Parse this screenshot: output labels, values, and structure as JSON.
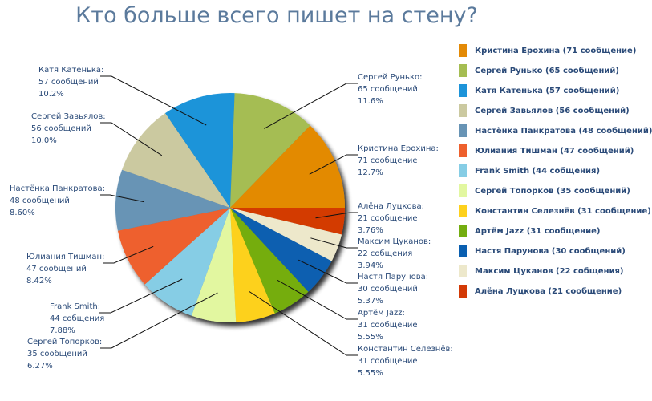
{
  "chart_data": {
    "type": "pie",
    "title": "Кто больше всего пишет на стену?",
    "legend_position": "right",
    "slices": [
      {
        "name": "Кристина Ерохина",
        "value": 71,
        "unit": "сообщение",
        "percent": "12.7%",
        "color": "#e38a06",
        "legend": "Кристина Ерохина (71 сообщение)"
      },
      {
        "name": "Сергей Рунько",
        "value": 65,
        "unit": "сообщений",
        "percent": "11.6%",
        "color": "#a5bd52",
        "legend": "Сергей Рунько (65 сообщений)"
      },
      {
        "name": "Катя Катенька",
        "value": 57,
        "unit": "сообщений",
        "percent": "10.2%",
        "color": "#1d94d9",
        "legend": "Катя Катенька (57 сообщений)"
      },
      {
        "name": "Сергей Завьялов",
        "value": 56,
        "unit": "сообщений",
        "percent": "10.0%",
        "color": "#cbc9a0",
        "legend": "Сергей Завьялов (56 сообщений)"
      },
      {
        "name": "Настёнка Панкратова",
        "value": 48,
        "unit": "сообщений",
        "percent": "8.60%",
        "color": "#6894b5",
        "legend": "Настёнка Панкратова (48 сообщений)"
      },
      {
        "name": "Юлиания Тишман",
        "value": 47,
        "unit": "сообщений",
        "percent": "8.42%",
        "color": "#ee602d",
        "legend": "Юлиания Тишман (47 сообщений)"
      },
      {
        "name": "Frank Smith",
        "value": 44,
        "unit": "собщения",
        "percent": "7.88%",
        "color": "#86cde5",
        "legend": "Frank Smith (44 собщения)"
      },
      {
        "name": "Сергей Топорков",
        "value": 35,
        "unit": "сообщений",
        "percent": "6.27%",
        "color": "#e2f7a0",
        "legend": "Сергей Топорков (35 сообщений)"
      },
      {
        "name": "Константин Селезнёв",
        "value": 31,
        "unit": "сообщение",
        "percent": "5.55%",
        "color": "#fdd11d",
        "legend": "Константин Селезнёв (31 сообщение)"
      },
      {
        "name": "Артём Jazz",
        "value": 31,
        "unit": "сообщение",
        "percent": "5.55%",
        "color": "#74ad10",
        "legend": "Артём Jazz (31 сообщение)"
      },
      {
        "name": "Настя Парунова",
        "value": 30,
        "unit": "сообщений",
        "percent": "5.37%",
        "color": "#0a5fb0",
        "legend": "Настя Парунова (30 сообщений)"
      },
      {
        "name": "Максим Цуканов",
        "value": 22,
        "unit": "собщения",
        "percent": "3.94%",
        "color": "#ede8cb",
        "legend": "Максим Цуканов (22 собщения)"
      },
      {
        "name": "Алёна Луцкова",
        "value": 21,
        "unit": "сообщение",
        "percent": "3.76%",
        "color": "#d33a06",
        "legend": "Алёна Луцкова (21 сообщение)"
      }
    ]
  },
  "labels": [
    {
      "name": "Кристина Ерохина:",
      "count": "71 сообщение",
      "pct": "12.7%"
    },
    {
      "name": "Сергей Рунько:",
      "count": "65 сообщений",
      "pct": "11.6%"
    },
    {
      "name": "Катя Катенька:",
      "count": "57 сообщений",
      "pct": "10.2%"
    },
    {
      "name": "Сергей Завьялов:",
      "count": "56 сообщений",
      "pct": "10.0%"
    },
    {
      "name": "Настёнка Панкратова:",
      "count": "48 сообщений",
      "pct": "8.60%"
    },
    {
      "name": "Юлиания Тишман:",
      "count": "47 сообщений",
      "pct": "8.42%"
    },
    {
      "name": "Frank Smith:",
      "count": "44 собщения",
      "pct": "7.88%"
    },
    {
      "name": "Сергей Топорков:",
      "count": "35 сообщений",
      "pct": "6.27%"
    },
    {
      "name": "Константин Селезнёв:",
      "count": "31 сообщение",
      "pct": "5.55%"
    },
    {
      "name": "Артём Jazz:",
      "count": "31 сообщение",
      "pct": "5.55%"
    },
    {
      "name": "Настя Парунова:",
      "count": "30 сообщений",
      "pct": "5.37%"
    },
    {
      "name": "Максим Цуканов:",
      "count": "22 собщения",
      "pct": "3.94%"
    },
    {
      "name": "Алёна Луцкова:",
      "count": "21 сообщение",
      "pct": "3.76%"
    }
  ]
}
